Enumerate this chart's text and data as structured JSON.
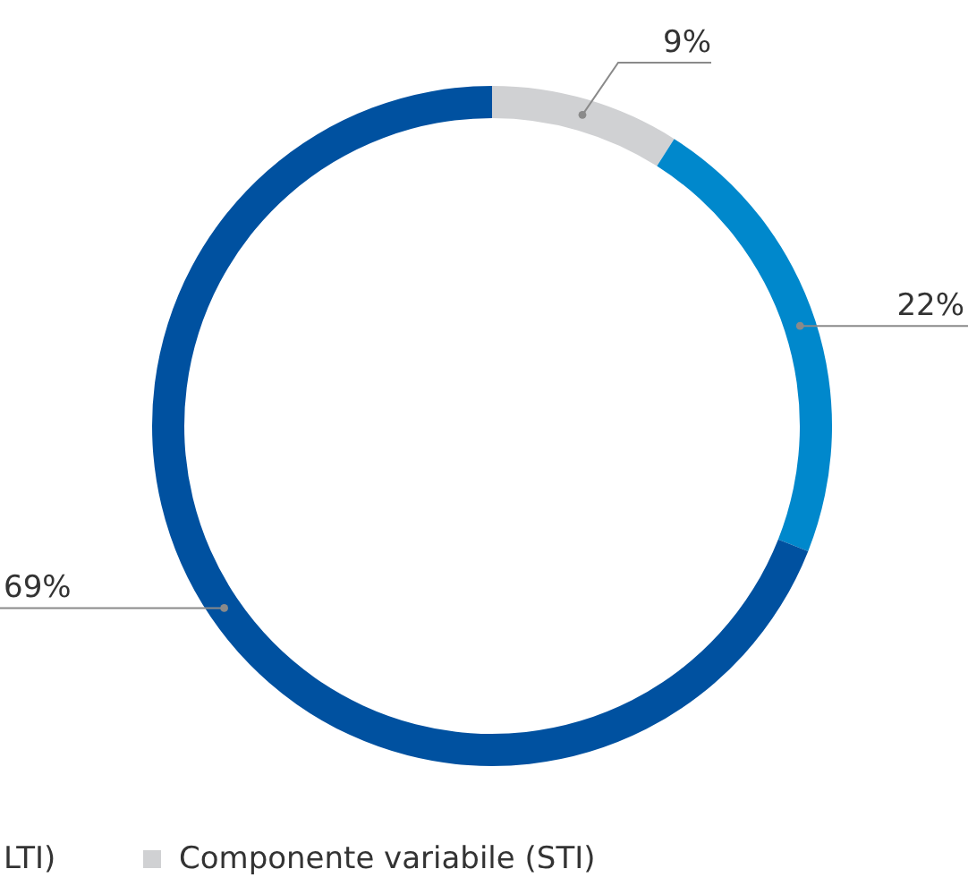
{
  "chart_data": {
    "type": "donut",
    "categories": [
      "Componente variabile (STI)",
      null,
      null
    ],
    "values": [
      9,
      22,
      69
    ],
    "colors": [
      "#d0d1d3",
      "#0088cc",
      "#0051a0"
    ],
    "data_labels": true,
    "value_labels": [
      "9%",
      "22%",
      "69%"
    ],
    "legend": "bottom",
    "annotations": [
      "LTI)"
    ]
  }
}
